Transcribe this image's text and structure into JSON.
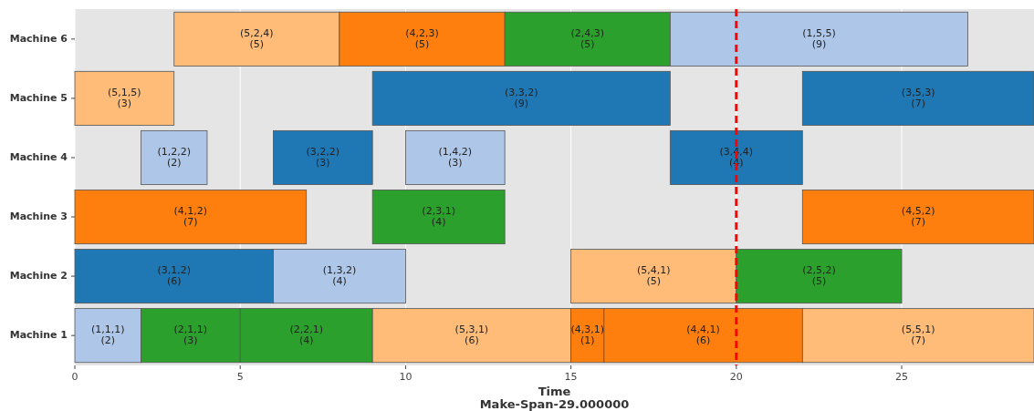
{
  "chart_data": {
    "type": "bar",
    "orientation": "horizontal",
    "xlabel": "Time",
    "annotations": [
      "Make-Span-29.000000"
    ],
    "categories": [
      "Machine 6",
      "Machine 5",
      "Machine 4",
      "Machine 3",
      "Machine 2",
      "Machine 1"
    ],
    "xlim": [
      0,
      29
    ],
    "xticks": [
      0,
      5,
      10,
      15,
      20,
      25
    ],
    "grid": "x",
    "ref_lines": [
      {
        "axis": "x",
        "value": 20,
        "color": "#ff0000",
        "line_style": "dashed"
      }
    ],
    "series": [
      {
        "values": [
          5,
          3,
          2,
          7,
          6,
          2
        ],
        "base": [
          3,
          0,
          2,
          0,
          0,
          0
        ],
        "colors": [
          "#ffbb78",
          "#ffbb78",
          "#aec7e8",
          "#ff7f0e",
          "#1f77b4",
          "#aec7e8"
        ],
        "value_labels": [
          "(5,2,4)\n(5)",
          "(5,1,5)\n(3)",
          "(1,2,2)\n(2)",
          "(4,1,2)\n(7)",
          "(3,1,2)\n(6)",
          "(1,1,1)\n(2)"
        ]
      },
      {
        "values": [
          5,
          9,
          3,
          4,
          4,
          3
        ],
        "base": [
          8,
          9,
          6,
          9,
          6,
          2
        ],
        "colors": [
          "#ff7f0e",
          "#1f77b4",
          "#1f77b4",
          "#2ca02c",
          "#aec7e8",
          "#2ca02c"
        ],
        "value_labels": [
          "(4,2,3)\n(5)",
          "(3,3,2)\n(9)",
          "(3,2,2)\n(3)",
          "(2,3,1)\n(4)",
          "(1,3,2)\n(4)",
          "(2,1,1)\n(3)"
        ]
      },
      {
        "values": [
          5,
          7,
          3,
          7,
          5,
          4
        ],
        "base": [
          13,
          22,
          10,
          22,
          15,
          5
        ],
        "colors": [
          "#2ca02c",
          "#1f77b4",
          "#aec7e8",
          "#ff7f0e",
          "#ffbb78",
          "#2ca02c"
        ],
        "value_labels": [
          "(2,4,3)\n(5)",
          "(3,5,3)\n(7)",
          "(1,4,2)\n(3)",
          "(4,5,2)\n(7)",
          "(5,4,1)\n(5)",
          "(2,2,1)\n(4)"
        ]
      },
      {
        "values": [
          9,
          null,
          4,
          null,
          5,
          6
        ],
        "base": [
          18,
          null,
          18,
          null,
          20,
          9
        ],
        "colors": [
          "#aec7e8",
          null,
          "#1f77b4",
          null,
          "#2ca02c",
          "#ffbb78"
        ],
        "value_labels": [
          "(1,5,5)\n(9)",
          null,
          "(3,4,4)\n(4)",
          null,
          "(2,5,2)\n(5)",
          "(5,3,1)\n(6)"
        ]
      },
      {
        "values": [
          null,
          null,
          null,
          null,
          null,
          1
        ],
        "base": [
          null,
          null,
          null,
          null,
          null,
          15
        ],
        "colors": [
          null,
          null,
          null,
          null,
          null,
          "#ff7f0e"
        ],
        "value_labels": [
          null,
          null,
          null,
          null,
          null,
          "(4,3,1)\n(1)"
        ]
      },
      {
        "values": [
          null,
          null,
          null,
          null,
          null,
          6
        ],
        "base": [
          null,
          null,
          null,
          null,
          null,
          16
        ],
        "colors": [
          null,
          null,
          null,
          null,
          null,
          "#ff7f0e"
        ],
        "value_labels": [
          null,
          null,
          null,
          null,
          null,
          "(4,4,1)\n(6)"
        ]
      },
      {
        "values": [
          null,
          null,
          null,
          null,
          null,
          7
        ],
        "base": [
          null,
          null,
          null,
          null,
          null,
          22
        ],
        "colors": [
          null,
          null,
          null,
          null,
          null,
          "#ffbb78"
        ],
        "value_labels": [
          null,
          null,
          null,
          null,
          null,
          "(5,5,1)\n(7)"
        ]
      }
    ]
  }
}
